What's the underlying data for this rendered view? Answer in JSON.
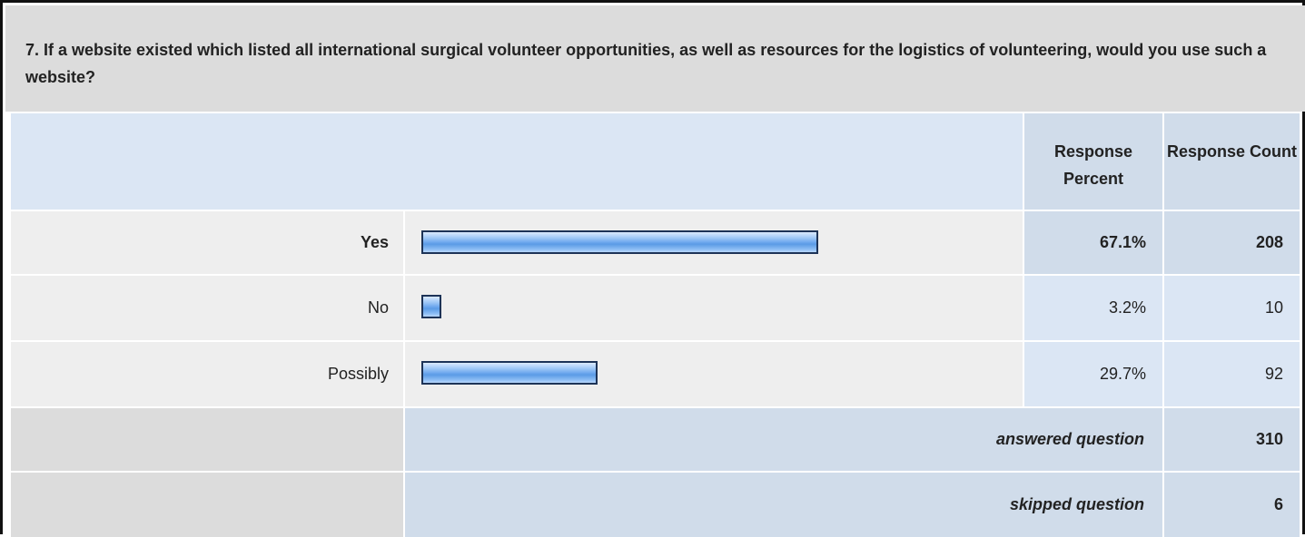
{
  "question": {
    "text": "7. If a website existed which listed all international surgical volunteer opportunities, as well as resources for the logistics of volunteering, would you use such a website?"
  },
  "header": {
    "response_percent": "Response Percent",
    "response_count": "Response Count"
  },
  "rows": [
    {
      "label": "Yes",
      "percent": "67.1%",
      "count": "208",
      "bar_fraction": 0.671
    },
    {
      "label": "No",
      "percent": "3.2%",
      "count": "10",
      "bar_fraction": 0.032
    },
    {
      "label": "Possibly",
      "percent": "29.7%",
      "count": "92",
      "bar_fraction": 0.297
    }
  ],
  "summary": {
    "answered_label": "answered question",
    "answered_value": "310",
    "skipped_label": "skipped question",
    "skipped_value": "6"
  },
  "colors": {
    "bar_fill": "#6fa8ee",
    "bar_border": "#1d3357",
    "header_bg": "#dbe6f4",
    "question_bg": "#dcdcdc"
  }
}
